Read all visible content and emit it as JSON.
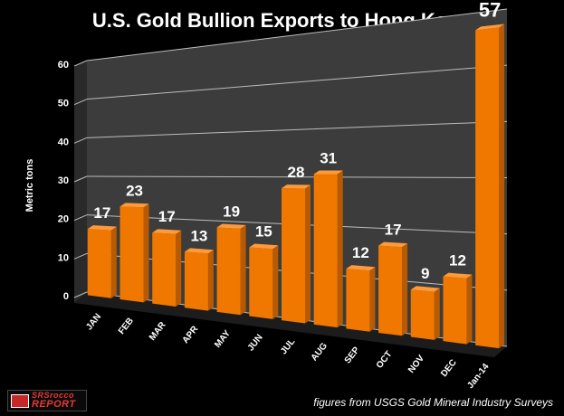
{
  "chart_data": {
    "type": "bar",
    "title": "U.S. Gold Bullion Exports to Hong Kong",
    "xlabel": "",
    "ylabel": "Metric tons",
    "ylim": [
      0,
      60
    ],
    "yticks": [
      0,
      10,
      20,
      30,
      40,
      50,
      60
    ],
    "grid": true,
    "categories": [
      "JAN",
      "FEB",
      "MAR",
      "APR",
      "MAY",
      "JUN",
      "JUL",
      "AUG",
      "SEP",
      "OCT",
      "NOV",
      "DEC",
      "Jan-14"
    ],
    "values": [
      17,
      23,
      17,
      13,
      19,
      15,
      28,
      31,
      12,
      17,
      9,
      12,
      57
    ],
    "data_labels": [
      "17",
      "23",
      "17",
      "13",
      "19",
      "15",
      "28",
      "31",
      "12",
      "17",
      "9",
      "12",
      "57"
    ],
    "colors": {
      "bar_front": "#F07800",
      "bar_side": "#B85A00",
      "bar_top": "#FF9A3A",
      "wall": "#3c3c3c",
      "grid": "#bdbdbd",
      "text": "#ffffff"
    }
  },
  "logo": {
    "line1": "SRSrocco",
    "line2": "REPORT",
    "badge": "GOLD"
  },
  "source_note": "figures from USGS Gold Mineral Industry Surveys"
}
